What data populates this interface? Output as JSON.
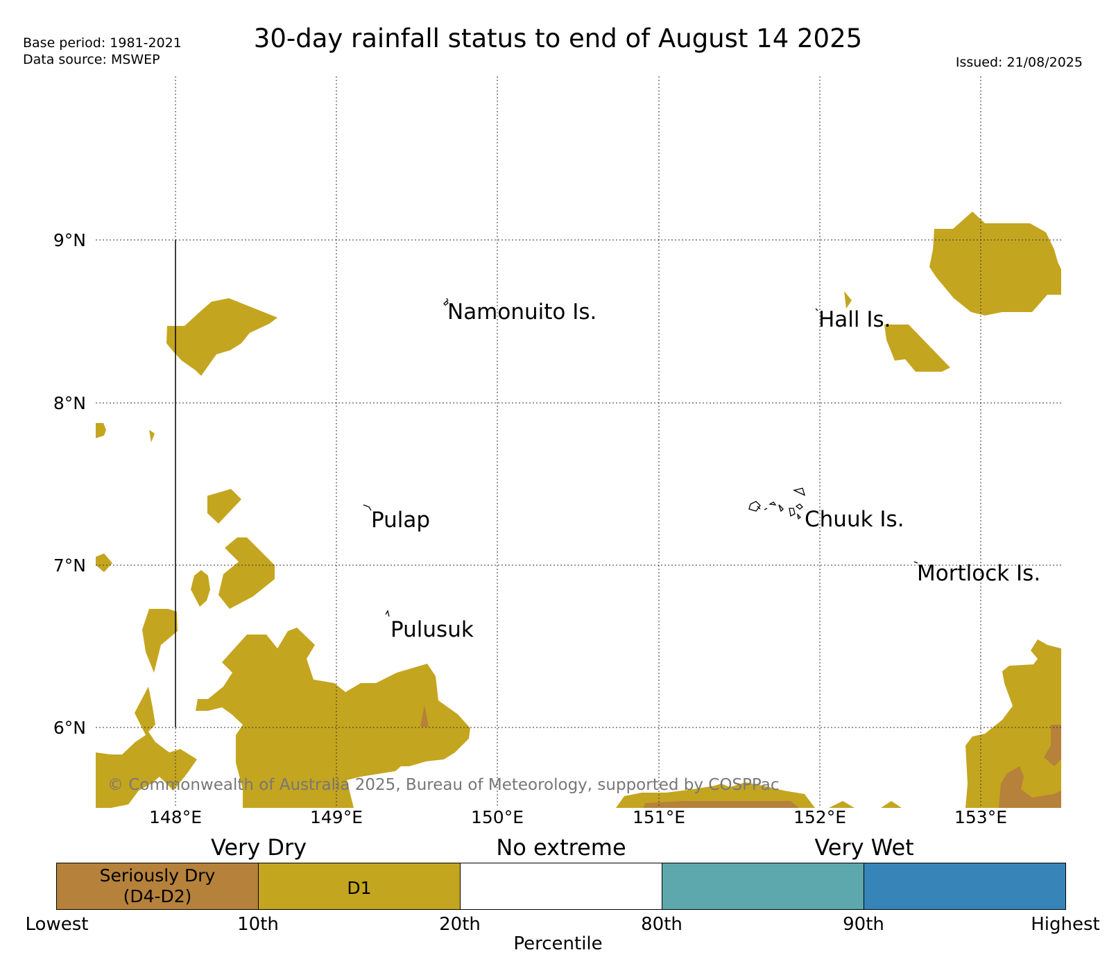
{
  "header": {
    "title": "30-day rainfall status to end of August 14 2025",
    "base_period": "Base period: 1981-2021",
    "data_source": "Data source: MSWEP",
    "issued": "Issued: 21/08/2025"
  },
  "map": {
    "lat_labels": [
      "9°N",
      "8°N",
      "7°N",
      "6°N"
    ],
    "lon_labels": [
      "148°E",
      "149°E",
      "150°E",
      "151°E",
      "152°E",
      "153°E"
    ],
    "places": {
      "namonuito": "Namonuito Is.",
      "hall": "Hall Is.",
      "pulap": "Pulap",
      "chuuk": "Chuuk Is.",
      "mortlock": "Mortlock Is.",
      "pulusuk": "Pulusuk"
    },
    "copyright": "© Commonwealth of Australia 2025, Bureau of Meteorology, supported by COSPPac",
    "colors": {
      "d1": "#C4A51F",
      "seriously_dry": "#B5813B"
    }
  },
  "legend": {
    "groups": {
      "very_dry": "Very Dry",
      "no_extreme": "No extreme",
      "very_wet": "Very Wet"
    },
    "boxes": [
      {
        "label": "Seriously Dry\n(D4-D2)",
        "color": "#B5813B"
      },
      {
        "label": "D1",
        "color": "#C4A51F"
      },
      {
        "label": "",
        "color": "#FFFFFF"
      },
      {
        "label": "",
        "color": "#5DA8AC"
      },
      {
        "label": "",
        "color": "#3785B8"
      }
    ],
    "box_labels": {
      "seriously_dry_line1": "Seriously Dry",
      "seriously_dry_line2": "(D4-D2)",
      "d1": "D1"
    },
    "ticks": [
      "Lowest",
      "10th",
      "20th",
      "80th",
      "90th",
      "Highest"
    ],
    "axis_label": "Percentile"
  }
}
